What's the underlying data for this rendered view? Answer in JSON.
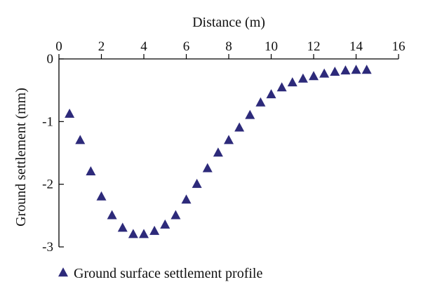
{
  "chart_data": {
    "type": "scatter",
    "title": "",
    "xlabel": "Distance (m)",
    "ylabel": "Ground settlement (mm)",
    "xlim": [
      0,
      16
    ],
    "ylim": [
      -3,
      0
    ],
    "x_axis_position": "top",
    "x_ticks": [
      0,
      2,
      4,
      6,
      8,
      10,
      12,
      14,
      16
    ],
    "y_ticks": [
      0,
      -1,
      -2,
      -3
    ],
    "x_tick_labels": [
      "0",
      "2",
      "4",
      "6",
      "8",
      "10",
      "12",
      "14",
      "16"
    ],
    "y_tick_labels": [
      "0",
      "-1",
      "-2",
      "-3"
    ],
    "grid": false,
    "legend_position": "bottom-left",
    "marker": "triangle",
    "marker_color": "#2d2a7a",
    "series": [
      {
        "name": "Ground surface settlement profile",
        "x": [
          0.5,
          1,
          1.5,
          2,
          2.5,
          3,
          3.5,
          4,
          4.5,
          5,
          5.5,
          6,
          6.5,
          7,
          7.5,
          8,
          8.5,
          9,
          9.5,
          10,
          10.5,
          11,
          11.5,
          12,
          12.5,
          13,
          13.5,
          14,
          14.5
        ],
        "y": [
          -0.88,
          -1.3,
          -1.8,
          -2.2,
          -2.5,
          -2.7,
          -2.8,
          -2.8,
          -2.75,
          -2.65,
          -2.5,
          -2.25,
          -2.0,
          -1.75,
          -1.5,
          -1.3,
          -1.1,
          -0.9,
          -0.7,
          -0.57,
          -0.46,
          -0.38,
          -0.32,
          -0.28,
          -0.24,
          -0.21,
          -0.19,
          -0.18,
          -0.18
        ]
      }
    ]
  }
}
